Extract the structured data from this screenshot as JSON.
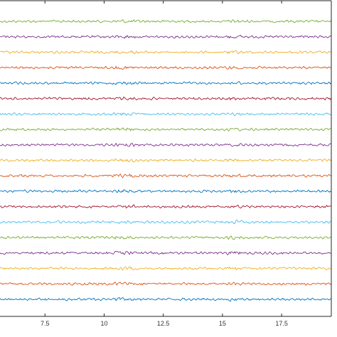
{
  "chart_data": {
    "type": "line",
    "title": "",
    "xlabel": "",
    "ylabel": "",
    "xlim": [
      5.6,
      19.6
    ],
    "grid": false,
    "legend": "none",
    "x_ticks": [
      {
        "value": 7.5,
        "label": "7.5"
      },
      {
        "value": 10,
        "label": "10"
      },
      {
        "value": 12.5,
        "label": "12.5"
      },
      {
        "value": 15,
        "label": "15"
      },
      {
        "value": 17.5,
        "label": "17.5"
      }
    ],
    "series_count": 19,
    "series_colors": [
      "#77AC30",
      "#7E2F8E",
      "#EDB120",
      "#D95319",
      "#0072BD",
      "#A2142F",
      "#4DBEEE",
      "#77AC30",
      "#7E2F8E",
      "#EDB120",
      "#D95319",
      "#0072BD",
      "#A2142F",
      "#4DBEEE",
      "#77AC30",
      "#7E2F8E",
      "#EDB120",
      "#D95319",
      "#0072BD"
    ],
    "series_note": "19 stacked noise-like traces (EEG-style), values not labeled"
  }
}
